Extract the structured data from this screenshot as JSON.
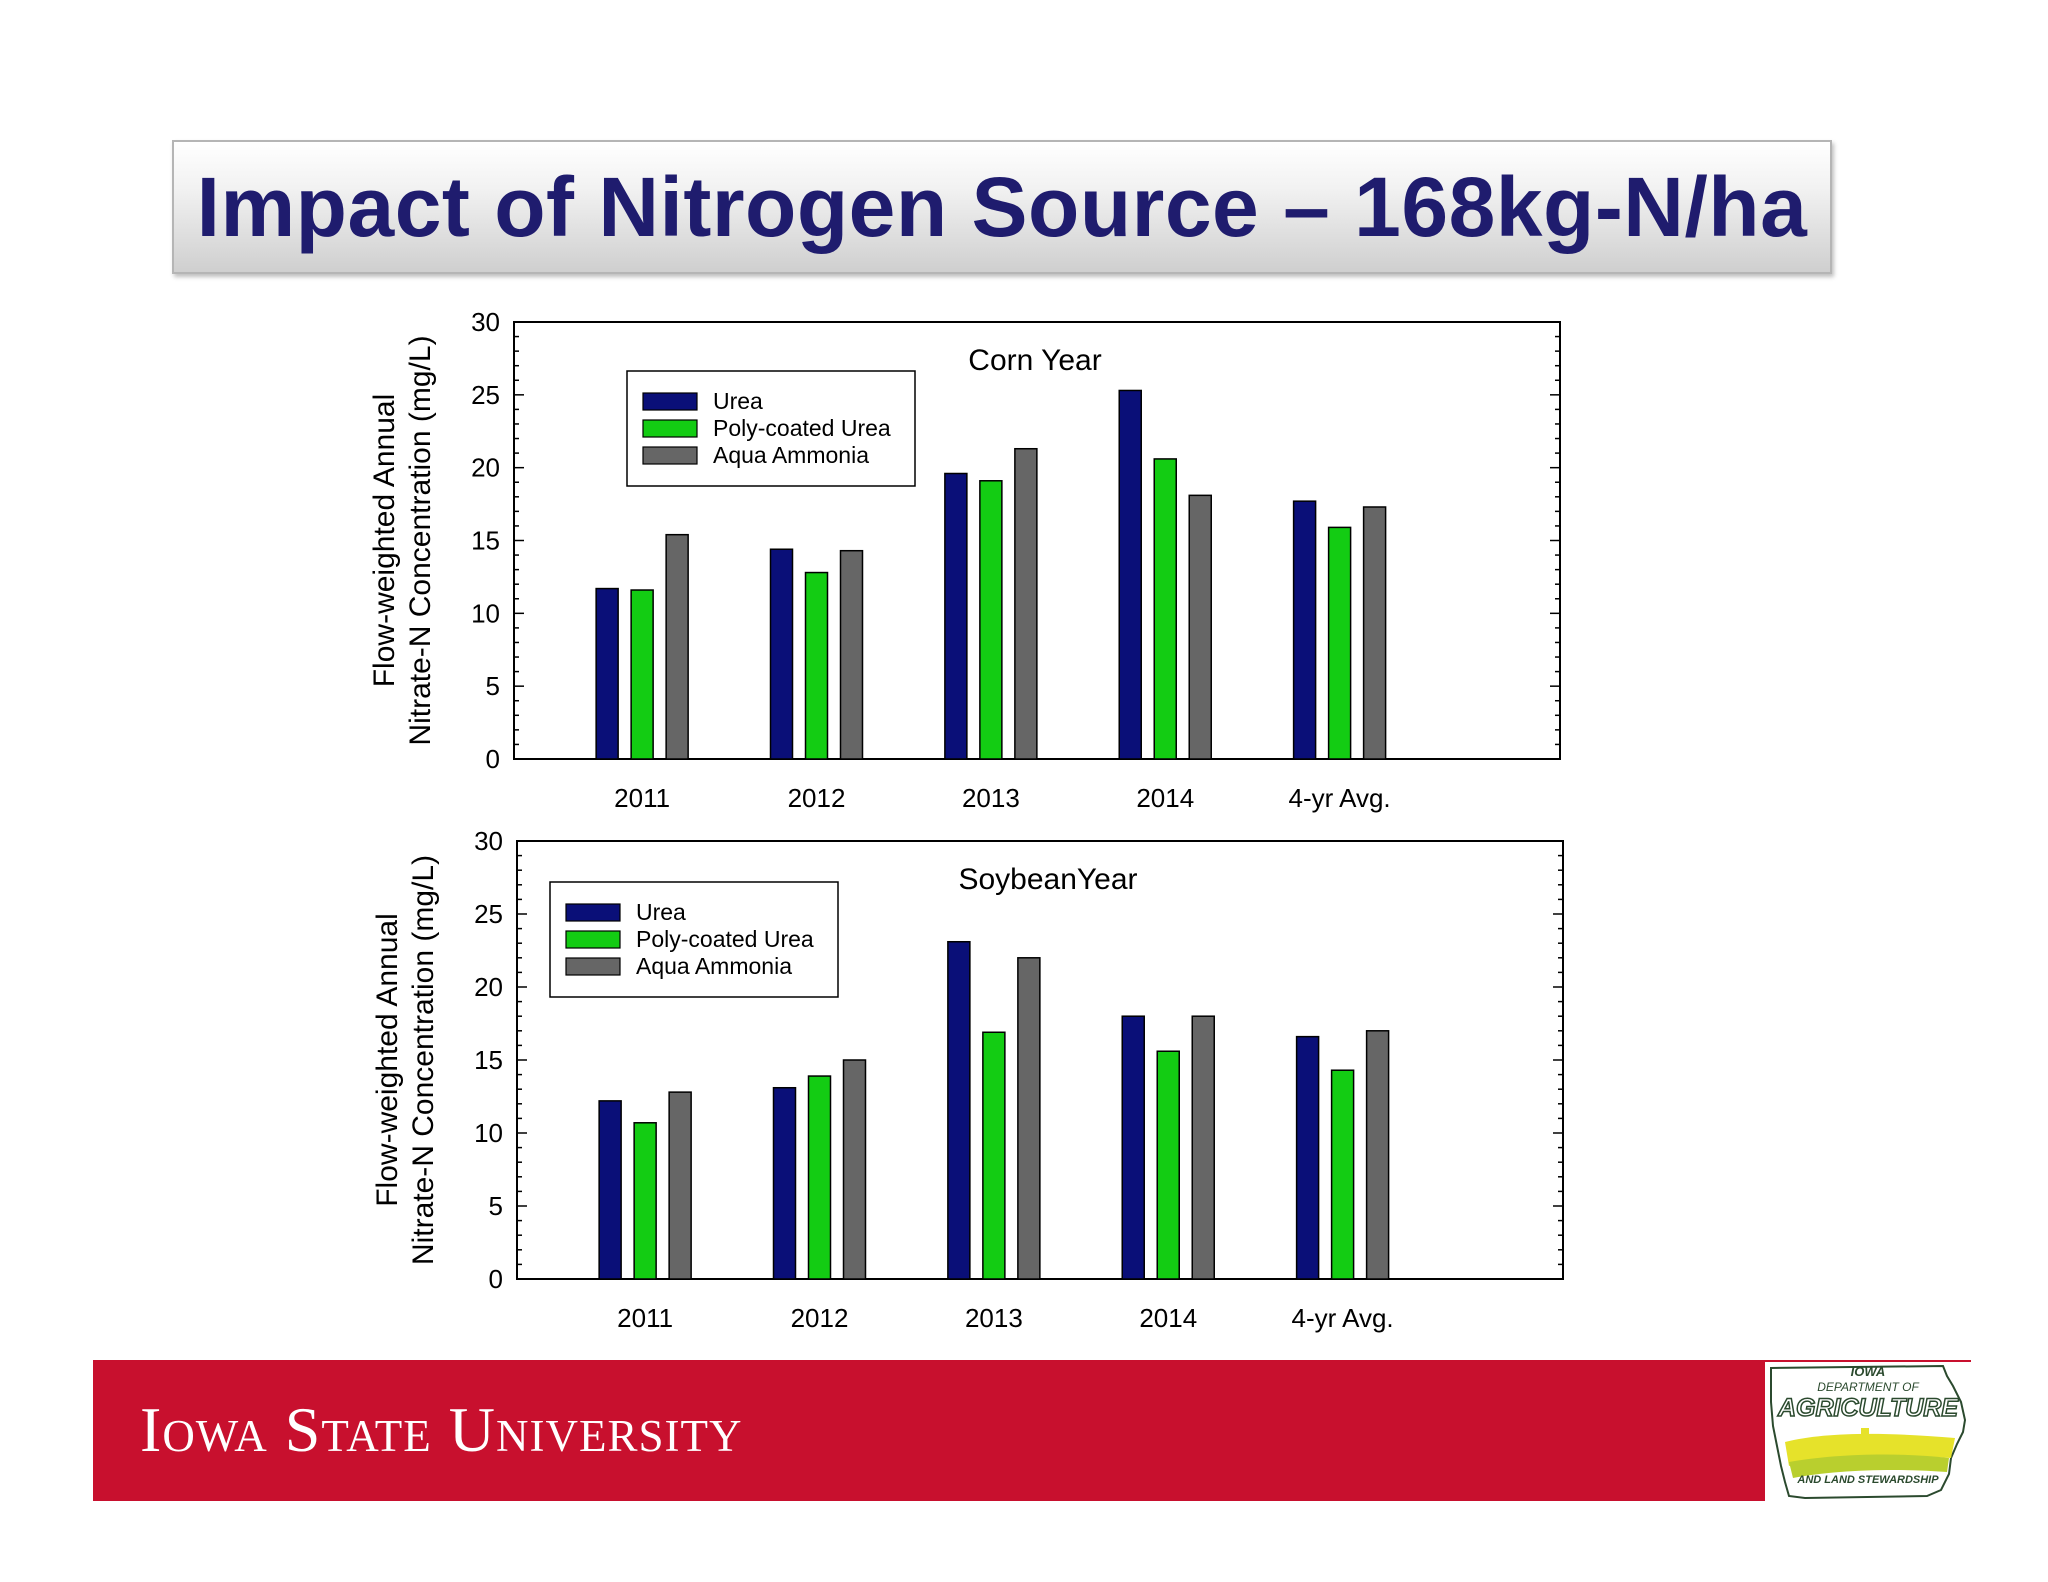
{
  "slide": {
    "title": "Impact of Nitrogen Source – 168kg-N/ha"
  },
  "footer": {
    "university": "Iowa State University",
    "logo": {
      "line1": "IOWA",
      "line2": "DEPARTMENT OF",
      "line3": "AGRICULTURE",
      "line4": "AND LAND STEWARDSHIP"
    }
  },
  "colors": {
    "urea": "#0a0f78",
    "poly_coated_urea": "#13cc13",
    "aqua_ammonia": "#666666",
    "title": "#1f1c6e",
    "footer": "#c8102e"
  },
  "chart_data": [
    {
      "type": "bar",
      "title": "Corn Year",
      "ylabel_line1": "Flow-weighted Annual",
      "ylabel_line2": "Nitrate-N Concentration (mg/L)",
      "xlabel": "",
      "categories": [
        "2011",
        "2012",
        "2013",
        "2014",
        "4-yr Avg."
      ],
      "ylim": [
        0,
        30
      ],
      "yticks": [
        0,
        5,
        10,
        15,
        20,
        25,
        30
      ],
      "legend_position": "top-left",
      "grid": false,
      "series": [
        {
          "name": "Urea",
          "color": "#0a0f78",
          "values": [
            11.7,
            14.4,
            19.6,
            25.3,
            17.7
          ]
        },
        {
          "name": "Poly-coated Urea",
          "color": "#13cc13",
          "values": [
            11.6,
            12.8,
            19.1,
            20.6,
            15.9
          ]
        },
        {
          "name": "Aqua Ammonia",
          "color": "#666666",
          "values": [
            15.4,
            14.3,
            21.3,
            18.1,
            17.3
          ]
        }
      ]
    },
    {
      "type": "bar",
      "title": "SoybeanYear",
      "ylabel_line1": "Flow-weighted Annual",
      "ylabel_line2": "Nitrate-N Concentration (mg/L)",
      "xlabel": "",
      "categories": [
        "2011",
        "2012",
        "2013",
        "2014",
        "4-yr Avg."
      ],
      "ylim": [
        0,
        30
      ],
      "yticks": [
        0,
        5,
        10,
        15,
        20,
        25,
        30
      ],
      "legend_position": "top-left",
      "grid": false,
      "series": [
        {
          "name": "Urea",
          "color": "#0a0f78",
          "values": [
            12.2,
            13.1,
            23.1,
            18.0,
            16.6
          ]
        },
        {
          "name": "Poly-coated Urea",
          "color": "#13cc13",
          "values": [
            10.7,
            13.9,
            16.9,
            15.6,
            14.3
          ]
        },
        {
          "name": "Aqua Ammonia",
          "color": "#666666",
          "values": [
            12.8,
            15.0,
            22.0,
            18.0,
            17.0
          ]
        }
      ]
    }
  ]
}
